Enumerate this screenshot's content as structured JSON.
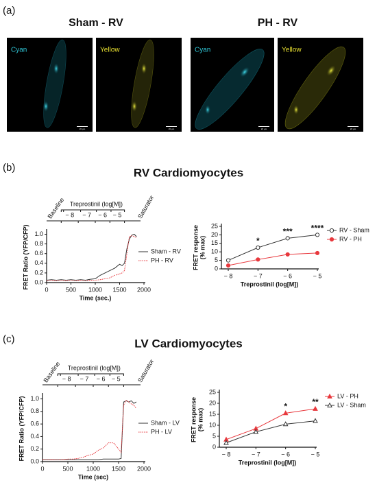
{
  "figure": {
    "panel_labels": [
      "(a)",
      "(b)",
      "(c)"
    ],
    "image_titles": [
      "Sham - RV",
      "PH - RV"
    ],
    "image_labels": [
      "Cyan",
      "Yellow",
      "Cyan",
      "Yellow"
    ],
    "scale_bar_label": "20 µm",
    "section_titles": [
      "RV Cardiomyocytes",
      "LV Cardiomyocytes"
    ]
  },
  "chart_data": [
    {
      "type": "line",
      "xlabel": "Time (sec.)",
      "ylabel": [
        "FRET Ratio (YFP/CFP)"
      ],
      "x": [
        0,
        100,
        200,
        300,
        400,
        500,
        600,
        700,
        800,
        900,
        1000,
        1100,
        1200,
        1300,
        1400,
        1500,
        1550,
        1600,
        1650,
        1700,
        1750,
        1800,
        1850
      ],
      "series": [
        {
          "name": "Sham - RV",
          "color": "#333333",
          "line_style": "solid",
          "marker": "none",
          "values": [
            0.05,
            0.06,
            0.05,
            0.06,
            0.05,
            0.06,
            0.05,
            0.06,
            0.05,
            0.07,
            0.08,
            0.15,
            0.2,
            0.25,
            0.3,
            0.38,
            0.35,
            0.4,
            0.7,
            0.9,
            0.98,
            1.0,
            0.95
          ]
        },
        {
          "name": "PH - RV",
          "color": "#e8383d",
          "line_style": "dotted",
          "marker": "none",
          "values": [
            0.04,
            0.05,
            0.04,
            0.05,
            0.04,
            0.05,
            0.04,
            0.05,
            0.04,
            0.05,
            0.05,
            0.06,
            0.08,
            0.1,
            0.15,
            0.18,
            0.2,
            0.25,
            0.6,
            0.95,
            0.97,
            0.95,
            0.93
          ]
        }
      ],
      "xlim": [
        0,
        2000
      ],
      "xticks": [
        0,
        500,
        1000,
        1500,
        2000
      ],
      "ylim": [
        0,
        1.05
      ],
      "yticks": [
        {
          "value": 0,
          "label": "0.0"
        },
        0.2,
        0.4,
        0.6,
        0.8,
        {
          "value": 1,
          "label": "1.0"
        }
      ],
      "legend": "right",
      "annotations": {
        "baseline": "Baseline",
        "treatment": "Treprostinil (log[M])",
        "doses": [
          "− 8",
          "− 7",
          "− 6",
          "− 5"
        ],
        "saturator": "Saturator"
      }
    },
    {
      "type": "line",
      "xlabel": "Treprostinil (log[M])",
      "ylabel": [
        "FRET response",
        "(% max)"
      ],
      "x": [
        -8,
        -7,
        -6,
        -5
      ],
      "series": [
        {
          "name": "RV - Sham",
          "color": "#333333",
          "line_style": "solid",
          "marker": "circle-open",
          "values": [
            5,
            12.5,
            18,
            20
          ]
        },
        {
          "name": "RV - PH",
          "color": "#e8383d",
          "line_style": "solid",
          "marker": "circle",
          "values": [
            2,
            5.5,
            8.5,
            9.3
          ]
        }
      ],
      "significance_labels": [
        null,
        "*",
        "***",
        "****"
      ],
      "xlim": [
        -8,
        -5
      ],
      "xticks": [
        {
          "value": -8,
          "label": "− 8"
        },
        {
          "value": -7,
          "label": "− 7"
        },
        {
          "value": -6,
          "label": "− 6"
        },
        {
          "value": -5,
          "label": "− 5"
        }
      ],
      "ylim": [
        0,
        25
      ],
      "yticks": [
        0,
        5,
        10,
        15,
        20,
        25
      ],
      "legend": "upper right"
    },
    {
      "type": "line",
      "xlabel": "Time (sec)",
      "ylabel": [
        "FRET Ratio (YFP/CFP)"
      ],
      "x": [
        0,
        100,
        200,
        300,
        400,
        500,
        600,
        700,
        800,
        900,
        1000,
        1100,
        1200,
        1300,
        1400,
        1500,
        1550,
        1600,
        1650,
        1700,
        1750,
        1800,
        1850
      ],
      "series": [
        {
          "name": "Sham - LV",
          "color": "#333333",
          "line_style": "solid",
          "marker": "none",
          "values": [
            0.03,
            0.03,
            0.03,
            0.03,
            0.03,
            0.03,
            0.03,
            0.03,
            0.03,
            0.03,
            0.03,
            0.03,
            0.04,
            0.04,
            0.04,
            0.04,
            0.05,
            0.95,
            0.97,
            0.95,
            0.97,
            0.93,
            0.95
          ]
        },
        {
          "name": "PH - LV",
          "color": "#e8383d",
          "line_style": "dotted",
          "marker": "none",
          "values": [
            0.03,
            0.03,
            0.03,
            0.03,
            0.03,
            0.04,
            0.04,
            0.05,
            0.07,
            0.1,
            0.12,
            0.18,
            0.22,
            0.3,
            0.3,
            0.2,
            0.15,
            0.9,
            0.98,
            0.95,
            0.92,
            0.9,
            0.85
          ]
        }
      ],
      "xlim": [
        0,
        2000
      ],
      "xticks": [
        0,
        500,
        1000,
        1500,
        2000
      ],
      "ylim": [
        0,
        1.05
      ],
      "yticks": [
        {
          "value": 0,
          "label": "0.0"
        },
        0.2,
        0.4,
        0.6,
        0.8,
        {
          "value": 1,
          "label": "1.0"
        }
      ],
      "legend": "right",
      "annotations": {
        "baseline": "Baseline",
        "treatment": "Treprostinil (log[M])",
        "doses": [
          "− 8",
          "− 7",
          "− 6",
          "− 5"
        ],
        "saturator": "Saturator"
      }
    },
    {
      "type": "line",
      "xlabel": "Treprostinil (log[M])",
      "ylabel": [
        "FRET response",
        "(% max)"
      ],
      "x": [
        -8,
        -7,
        -6,
        -5
      ],
      "series": [
        {
          "name": "LV - PH",
          "color": "#e8383d",
          "line_style": "solid",
          "marker": "triangle",
          "values": [
            3.5,
            8.5,
            15.5,
            17.5
          ]
        },
        {
          "name": "LV - Sham",
          "color": "#333333",
          "line_style": "solid",
          "marker": "triangle-open",
          "values": [
            2,
            7,
            10.5,
            12
          ]
        }
      ],
      "significance_labels": [
        null,
        null,
        "*",
        "**"
      ],
      "xlim": [
        -8,
        -5
      ],
      "xticks": [
        {
          "value": -8,
          "label": "− 8"
        },
        {
          "value": -7,
          "label": "− 7"
        },
        {
          "value": -6,
          "label": "− 6"
        },
        {
          "value": -5,
          "label": "− 5"
        }
      ],
      "ylim": [
        0,
        25
      ],
      "yticks": [
        0,
        5,
        10,
        15,
        20,
        25
      ],
      "legend": "upper right"
    }
  ]
}
